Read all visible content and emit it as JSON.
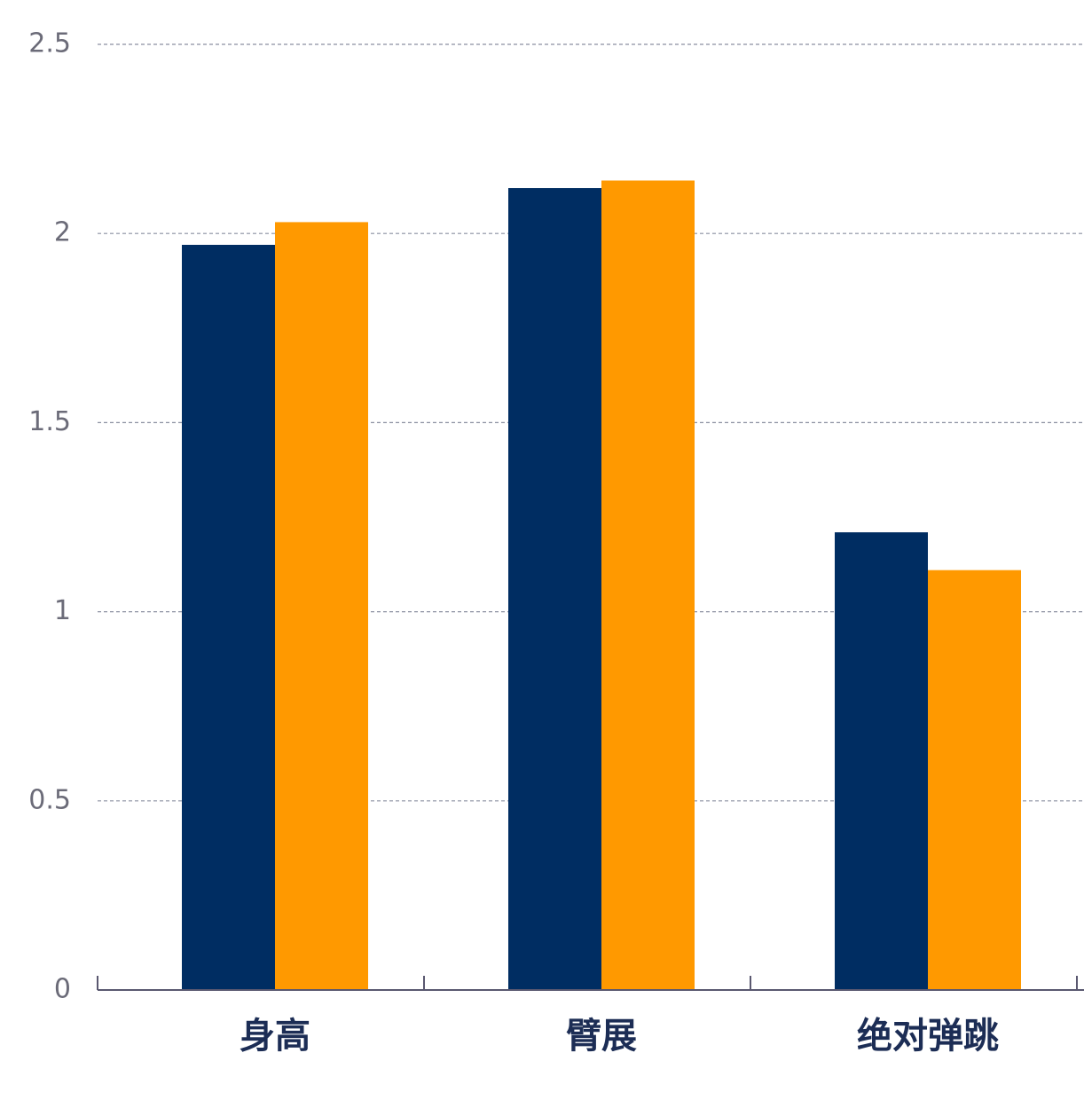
{
  "chart_data": {
    "type": "bar",
    "categories": [
      "身高",
      "臂展",
      "绝对弹跳"
    ],
    "series": [
      {
        "color": "#002d62",
        "values": [
          1.97,
          2.12,
          1.21
        ]
      },
      {
        "color": "#ff9900",
        "values": [
          2.03,
          2.14,
          1.11
        ]
      }
    ],
    "ylim": [
      0,
      2.5
    ],
    "yticks": [
      0,
      0.5,
      1,
      1.5,
      2,
      2.5
    ],
    "grid": true
  }
}
